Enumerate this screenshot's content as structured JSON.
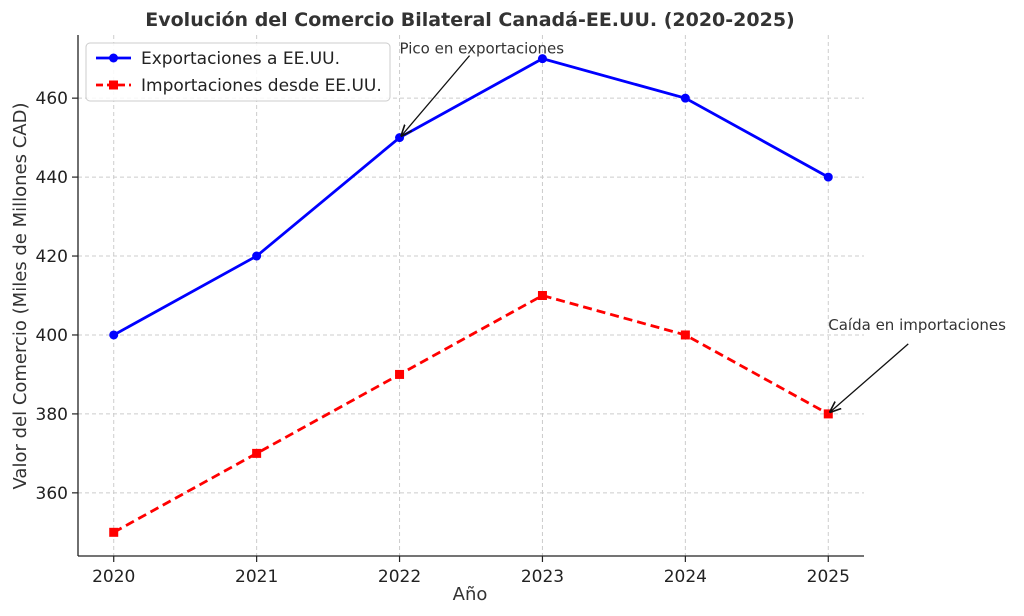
{
  "chart_data": {
    "type": "line",
    "title": "Evolución del Comercio Bilateral Canadá-EE.UU. (2020-2025)",
    "xlabel": "Año",
    "ylabel": "Valor del Comercio (Miles de Millones CAD)",
    "x": [
      2020,
      2021,
      2022,
      2023,
      2024,
      2025
    ],
    "x_tick_labels": [
      "2020",
      "2021",
      "2022",
      "2023",
      "2024",
      "2025"
    ],
    "yticks": [
      360,
      380,
      400,
      420,
      440,
      460
    ],
    "ytick_labels": [
      "360",
      "380",
      "400",
      "420",
      "440",
      "460"
    ],
    "xlim": [
      2019.75,
      2025.25
    ],
    "ylim": [
      344,
      476
    ],
    "grid": true,
    "legend_position": "upper-left",
    "series": [
      {
        "name": "Exportaciones a EE.UU.",
        "values": [
          400,
          420,
          450,
          470,
          460,
          440
        ],
        "color": "#0000ff",
        "marker": "circle",
        "line_style": "solid"
      },
      {
        "name": "Importaciones desde EE.UU.",
        "values": [
          350,
          370,
          390,
          410,
          400,
          380
        ],
        "color": "#ff0000",
        "marker": "square",
        "line_style": "dashed"
      }
    ],
    "annotations": [
      {
        "text": "Pico en exportaciones",
        "x": 2022,
        "y": 450
      },
      {
        "text": "Caída en importaciones",
        "x": 2025,
        "y": 380
      }
    ]
  }
}
